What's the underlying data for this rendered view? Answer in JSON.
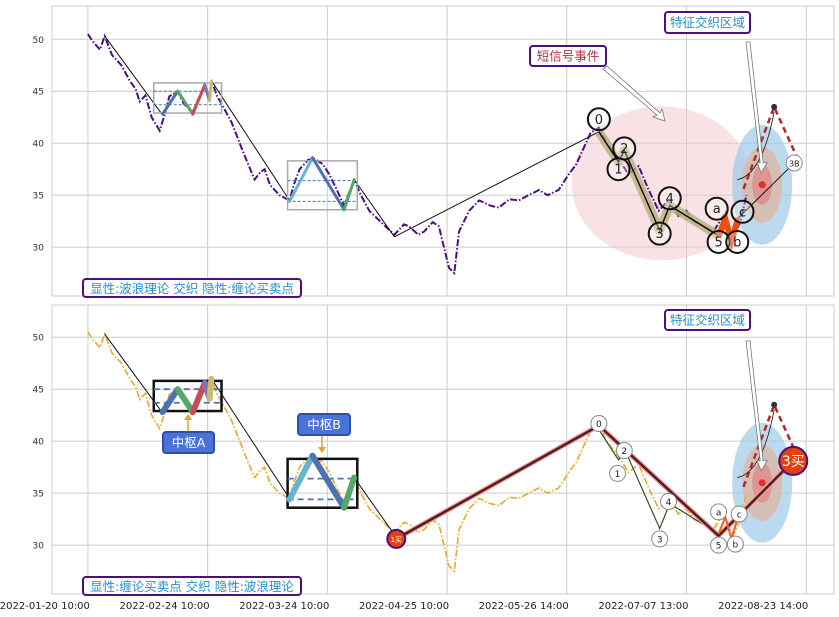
{
  "chart_data": [
    {
      "type": "line",
      "panel": "top",
      "legend_label": "显性:波浪理论 交织 隐性:缠论买卖点",
      "series_color": "#4b0f80",
      "grid": true,
      "ylim": [
        25.3,
        53.2
      ],
      "yticks": [
        30,
        35,
        40,
        45,
        50
      ],
      "annotations": [
        {
          "text": "短信号事件",
          "color": "#b03040"
        },
        {
          "text": "特征交织区域",
          "color": "#2a8fc7"
        }
      ],
      "wave_labels": [
        {
          "label": "0",
          "x": 106.7,
          "y": 42.3
        },
        {
          "label": "1",
          "x": 110.8,
          "y": 37.5
        },
        {
          "label": "2",
          "x": 112.0,
          "y": 39.5
        },
        {
          "label": "3",
          "x": 119.4,
          "y": 31.3
        },
        {
          "label": "4",
          "x": 121.5,
          "y": 34.7
        },
        {
          "label": "5",
          "x": 131.7,
          "y": 30.5
        },
        {
          "label": "a",
          "x": 131.3,
          "y": 33.7
        },
        {
          "label": "b",
          "x": 135.6,
          "y": 30.5
        },
        {
          "label": "c",
          "x": 136.7,
          "y": 33.4
        },
        {
          "label": "3B",
          "x": 147.5,
          "y": 38.1
        }
      ]
    },
    {
      "type": "line",
      "panel": "bottom",
      "legend_label": "显性:缠论买卖点 交织 隐性:波浪理论",
      "series_color": "#e8a92c",
      "grid": true,
      "ylim": [
        25.3,
        53.1
      ],
      "yticks": [
        30,
        35,
        40,
        45,
        50
      ],
      "annotations": [
        {
          "text": "特征交织区域",
          "color": "#2a8fc7"
        },
        {
          "text": "中枢A",
          "color": "#ffffff"
        },
        {
          "text": "中枢B",
          "color": "#ffffff"
        }
      ],
      "buy_points": [
        {
          "label": "1买",
          "x": 64.4,
          "y": 30.6
        },
        {
          "label": "3买",
          "x": 147.3,
          "y": 38.1
        }
      ],
      "wave_labels": [
        {
          "label": "0",
          "x": 106.7,
          "y": 41.7
        },
        {
          "label": "1",
          "x": 110.6,
          "y": 36.9
        },
        {
          "label": "2",
          "x": 112.0,
          "y": 39.1
        },
        {
          "label": "3",
          "x": 119.4,
          "y": 30.6
        },
        {
          "label": "4",
          "x": 121.25,
          "y": 34.2
        },
        {
          "label": "5",
          "x": 131.7,
          "y": 30.0
        },
        {
          "label": "a",
          "x": 131.7,
          "y": 33.2
        },
        {
          "label": "b",
          "x": 135.2,
          "y": 30.1
        },
        {
          "label": "c",
          "x": 136.0,
          "y": 33.0
        }
      ]
    }
  ],
  "x_axis": {
    "xlim": [
      -7.5,
      155.8
    ],
    "ticks": [
      {
        "x": 0,
        "label": "2022-01-20 10:00"
      },
      {
        "x": 25,
        "label": "2022-02-24 10:00"
      },
      {
        "x": 50,
        "label": "2022-03-24 10:00"
      },
      {
        "x": 75,
        "label": "2022-04-25 10:00"
      },
      {
        "x": 100,
        "label": "2022-05-26 14:00"
      },
      {
        "x": 125,
        "label": "2022-07-07 13:00"
      },
      {
        "x": 150,
        "label": "2022-08-23 14:00"
      }
    ]
  },
  "price": {
    "x": [
      0,
      1,
      2.5,
      3.5,
      5,
      7,
      8.75,
      10,
      10.8,
      12,
      13.3,
      15,
      16,
      17,
      18.75,
      20,
      21.9,
      23,
      24.4,
      25.4,
      25.8,
      27,
      27.9,
      30,
      31.7,
      33,
      34.8,
      36,
      36.9,
      38,
      40,
      42.1,
      43,
      44.2,
      46,
      47.3,
      49,
      50.4,
      52,
      53.5,
      55.6,
      57,
      58.75,
      61,
      64,
      66,
      67.1,
      69,
      70.2,
      72,
      73.3,
      75.4,
      76.5,
      77.5,
      79.6,
      81.7,
      84,
      85.8,
      88,
      90,
      92,
      94.2,
      96,
      98.3,
      100.4,
      102,
      103.5,
      105,
      106.7,
      108.3,
      110.8,
      112.9,
      115,
      117.1,
      119.2,
      121.2,
      123.3,
      125,
      126.5,
      128.5,
      130.6,
      132.7,
      134.8,
      136.3,
      137.5
    ],
    "y": [
      50.5,
      49.8,
      49.0,
      50.3,
      48.5,
      47.5,
      46.0,
      45.2,
      44.0,
      44.6,
      42.5,
      41.2,
      42.7,
      44.5,
      45.0,
      43.8,
      43.0,
      44.2,
      45.5,
      44.0,
      46.0,
      44.5,
      43.8,
      42.0,
      40.0,
      38.5,
      36.5,
      37.2,
      37.5,
      36.0,
      35.0,
      34.5,
      36.0,
      37.5,
      38.4,
      38.5,
      38.0,
      37.0,
      35.5,
      34.0,
      36.5,
      35.0,
      33.5,
      32.5,
      31.2,
      32.2,
      32.0,
      31.2,
      31.5,
      32.4,
      32.0,
      28.0,
      27.5,
      31.5,
      33.5,
      34.5,
      34.0,
      33.8,
      34.6,
      34.5,
      35.0,
      35.5,
      35.0,
      35.5,
      37.0,
      38.0,
      39.5,
      41.0,
      41.5,
      40.0,
      38.5,
      37.0,
      37.8,
      35.5,
      33.5,
      34.5,
      33.0,
      33.5,
      32.5,
      32.0,
      31.5,
      33.0,
      31.0,
      32.5,
      35.0
    ]
  },
  "structures": {
    "trend_lines": [
      [
        [
          3.5,
          50.3
        ],
        [
          15.6,
          42.7
        ]
      ],
      [
        [
          25.8,
          46.0
        ],
        [
          42.1,
          34.5
        ]
      ],
      [
        [
          55.6,
          36.5
        ],
        [
          64.0,
          31.0
        ]
      ]
    ],
    "zhongshu": [
      {
        "name": "中枢A",
        "x": [
          13.75,
          27.9
        ],
        "y": [
          42.9,
          45.8
        ],
        "inner": [
          43.7,
          45.0
        ],
        "zigzag": [
          [
            15.6,
            42.8
          ],
          [
            18.75,
            45.0
          ],
          [
            21.9,
            42.8
          ],
          [
            24.4,
            45.6
          ],
          [
            25.4,
            44.1
          ],
          [
            25.8,
            46.0
          ]
        ],
        "colors": [
          "#4c72b0",
          "#55a868",
          "#c44e52",
          "#8172b2",
          "#ccb974"
        ]
      },
      {
        "name": "中枢B",
        "x": [
          41.7,
          56.25
        ],
        "y": [
          33.6,
          38.3
        ],
        "inner": [
          34.4,
          36.4
        ],
        "zigzag": [
          [
            42.1,
            34.4
          ],
          [
            46.9,
            38.6
          ],
          [
            53.5,
            33.6
          ],
          [
            55.6,
            36.5
          ]
        ],
        "colors": [
          "#64b5cd",
          "#4c72b0",
          "#55a868"
        ]
      }
    ],
    "top_link": [
      [
        64.0,
        31.0
      ],
      [
        106.7,
        41.1
      ]
    ],
    "wave_path": [
      [
        106.7,
        41.1
      ],
      [
        110.8,
        38.2
      ],
      [
        112.0,
        39.3
      ],
      [
        119.4,
        31.6
      ],
      [
        121.5,
        34.0
      ],
      [
        131.7,
        31.1
      ]
    ],
    "abc_path": [
      [
        131.7,
        31.1
      ],
      [
        133.1,
        32.7
      ],
      [
        134.4,
        30.6
      ],
      [
        135.8,
        32.8
      ]
    ],
    "bottom_bi": [
      [
        64.4,
        30.6
      ],
      [
        106.7,
        41.5
      ],
      [
        131.7,
        30.9
      ],
      [
        147.3,
        38.1
      ]
    ],
    "projection": [
      [
        136.9,
        35.6
      ],
      [
        143.3,
        43.5
      ],
      [
        148.3,
        38.4
      ]
    ],
    "zone_center": [
      140.8,
      36.0
    ],
    "signal_center": [
      119.8,
      36.15
    ]
  }
}
